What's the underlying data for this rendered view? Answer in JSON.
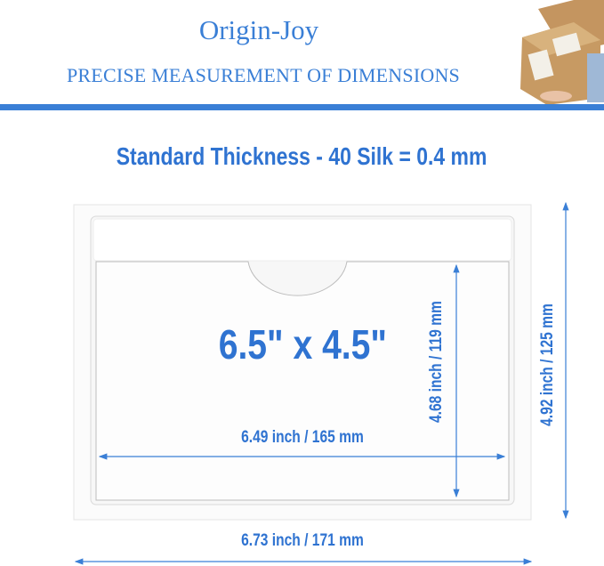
{
  "header": {
    "brand": "Origin-Joy",
    "tagline": "PRECISE MEASUREMENT OF DIMENSIONS"
  },
  "thickness": "Standard Thickness - 40 Silk = 0.4 mm",
  "product": {
    "size_label": "6.5\" x 4.5\"",
    "inner_width": "6.49 inch / 165 mm",
    "inner_height": "4.68 inch / 119 mm",
    "outer_width": "6.73 inch / 171 mm",
    "outer_height": "4.92 inch / 125 mm"
  },
  "colors": {
    "accent": "#3a7fd6",
    "box": "#c79a63"
  }
}
